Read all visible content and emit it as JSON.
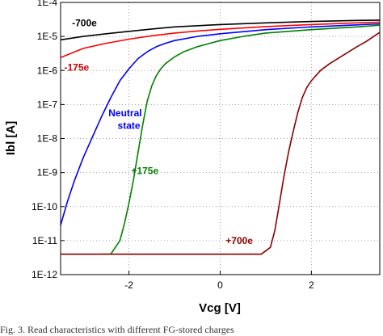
{
  "chart_data": {
    "type": "line",
    "title": "",
    "xlabel": "Vcg [V]",
    "ylabel": "Ibl [A]",
    "xlim": [
      -3.5,
      3.5
    ],
    "ylim_log10": [
      -12,
      -4
    ],
    "yscale": "log",
    "grid": true,
    "grid_style": "dotted",
    "x_ticks": [
      {
        "value": -2,
        "label": "-2"
      },
      {
        "value": 0,
        "label": "0"
      },
      {
        "value": 2,
        "label": "2"
      }
    ],
    "y_ticks": [
      {
        "exp": -4,
        "label": "1E-4"
      },
      {
        "exp": -5,
        "label": "1E-5"
      },
      {
        "exp": -6,
        "label": "1E-6"
      },
      {
        "exp": -7,
        "label": "1E-7"
      },
      {
        "exp": -8,
        "label": "1E-8"
      },
      {
        "exp": -9,
        "label": "1E-9"
      },
      {
        "exp": -10,
        "label": "1E-10"
      },
      {
        "exp": -11,
        "label": "1E-11"
      },
      {
        "exp": -12,
        "label": "1E-12"
      }
    ],
    "series": [
      {
        "label": "-700e",
        "color": "#000000",
        "annotation_color": "#000000",
        "x": [
          -3.5,
          -3.0,
          -2.5,
          -2.0,
          -1.5,
          -1.0,
          0.0,
          1.0,
          2.0,
          3.0,
          3.5
        ],
        "log10_y": [
          -5.1,
          -5.0,
          -4.92,
          -4.85,
          -4.78,
          -4.72,
          -4.65,
          -4.6,
          -4.56,
          -4.53,
          -4.52
        ]
      },
      {
        "label": "-175e",
        "color": "#ff0000",
        "annotation_color": "#b00000",
        "x": [
          -3.5,
          -3.0,
          -2.5,
          -2.0,
          -1.5,
          -1.0,
          -0.5,
          0.0,
          1.0,
          2.0,
          3.0,
          3.5
        ],
        "log10_y": [
          -5.62,
          -5.35,
          -5.2,
          -5.08,
          -4.98,
          -4.9,
          -4.84,
          -4.79,
          -4.71,
          -4.65,
          -4.6,
          -4.58
        ]
      },
      {
        "label": "Neutral state",
        "color": "#0000ff",
        "annotation_color": "#0000ff",
        "x": [
          -3.5,
          -3.35,
          -3.2,
          -3.0,
          -2.8,
          -2.6,
          -2.4,
          -2.2,
          -2.0,
          -1.8,
          -1.6,
          -1.4,
          -1.2,
          -1.0,
          -0.5,
          0.0,
          1.0,
          2.0,
          3.0,
          3.5
        ],
        "log10_y": [
          -10.55,
          -9.85,
          -9.25,
          -8.55,
          -7.95,
          -7.35,
          -6.8,
          -6.3,
          -5.95,
          -5.65,
          -5.45,
          -5.3,
          -5.2,
          -5.12,
          -5.0,
          -4.92,
          -4.8,
          -4.72,
          -4.66,
          -4.63
        ]
      },
      {
        "label": "+175e",
        "color": "#008000",
        "annotation_color": "#008000",
        "x": [
          -2.6,
          -2.4,
          -2.3,
          -2.2,
          -2.1,
          -2.0,
          -1.9,
          -1.8,
          -1.7,
          -1.6,
          -1.5,
          -1.4,
          -1.3,
          -1.2,
          -1.1,
          -1.0,
          -0.8,
          -0.5,
          0.0,
          0.5,
          1.0,
          2.0,
          3.0,
          3.5
        ],
        "log10_y": [
          -11.4,
          -11.4,
          -11.2,
          -11.0,
          -10.5,
          -9.9,
          -9.2,
          -8.4,
          -7.6,
          -6.9,
          -6.45,
          -6.15,
          -5.95,
          -5.8,
          -5.7,
          -5.6,
          -5.45,
          -5.3,
          -5.12,
          -5.0,
          -4.9,
          -4.8,
          -4.72,
          -4.67
        ]
      },
      {
        "label": "+700e",
        "color": "#8b0000",
        "annotation_color": "#8b0000",
        "x": [
          -3.5,
          -2.5,
          -1.0,
          0.0,
          0.9,
          1.1,
          1.2,
          1.3,
          1.4,
          1.5,
          1.6,
          1.7,
          1.8,
          1.9,
          2.0,
          2.2,
          2.4,
          2.7,
          3.0,
          3.2,
          3.5
        ],
        "log10_y": [
          -11.4,
          -11.4,
          -11.4,
          -11.4,
          -11.4,
          -11.2,
          -10.7,
          -9.9,
          -9.1,
          -8.4,
          -7.8,
          -7.25,
          -6.8,
          -6.5,
          -6.3,
          -6.0,
          -5.8,
          -5.55,
          -5.3,
          -5.15,
          -4.88
        ]
      }
    ],
    "annotations": [
      {
        "text": "-700e",
        "series": 0,
        "x": -3.25,
        "log10_y": -4.7,
        "color": "#000000"
      },
      {
        "text": "-175e",
        "series": 1,
        "x": -3.42,
        "log10_y": -6.0,
        "color": "#cc0000"
      },
      {
        "text": "Neutral",
        "series": 2,
        "x": -2.45,
        "log10_y": -7.35,
        "color": "#0000ff"
      },
      {
        "text": "state",
        "series": 2,
        "x": -2.25,
        "log10_y": -7.72,
        "color": "#0000ff"
      },
      {
        "text": "+175e",
        "series": 3,
        "x": -1.95,
        "log10_y": -9.05,
        "color": "#008000"
      },
      {
        "text": "+700e",
        "series": 4,
        "x": 0.12,
        "log10_y": -11.1,
        "color": "#8b0000"
      }
    ]
  },
  "caption": "Fig. 3. Read characteristics with different FG-stored charges"
}
